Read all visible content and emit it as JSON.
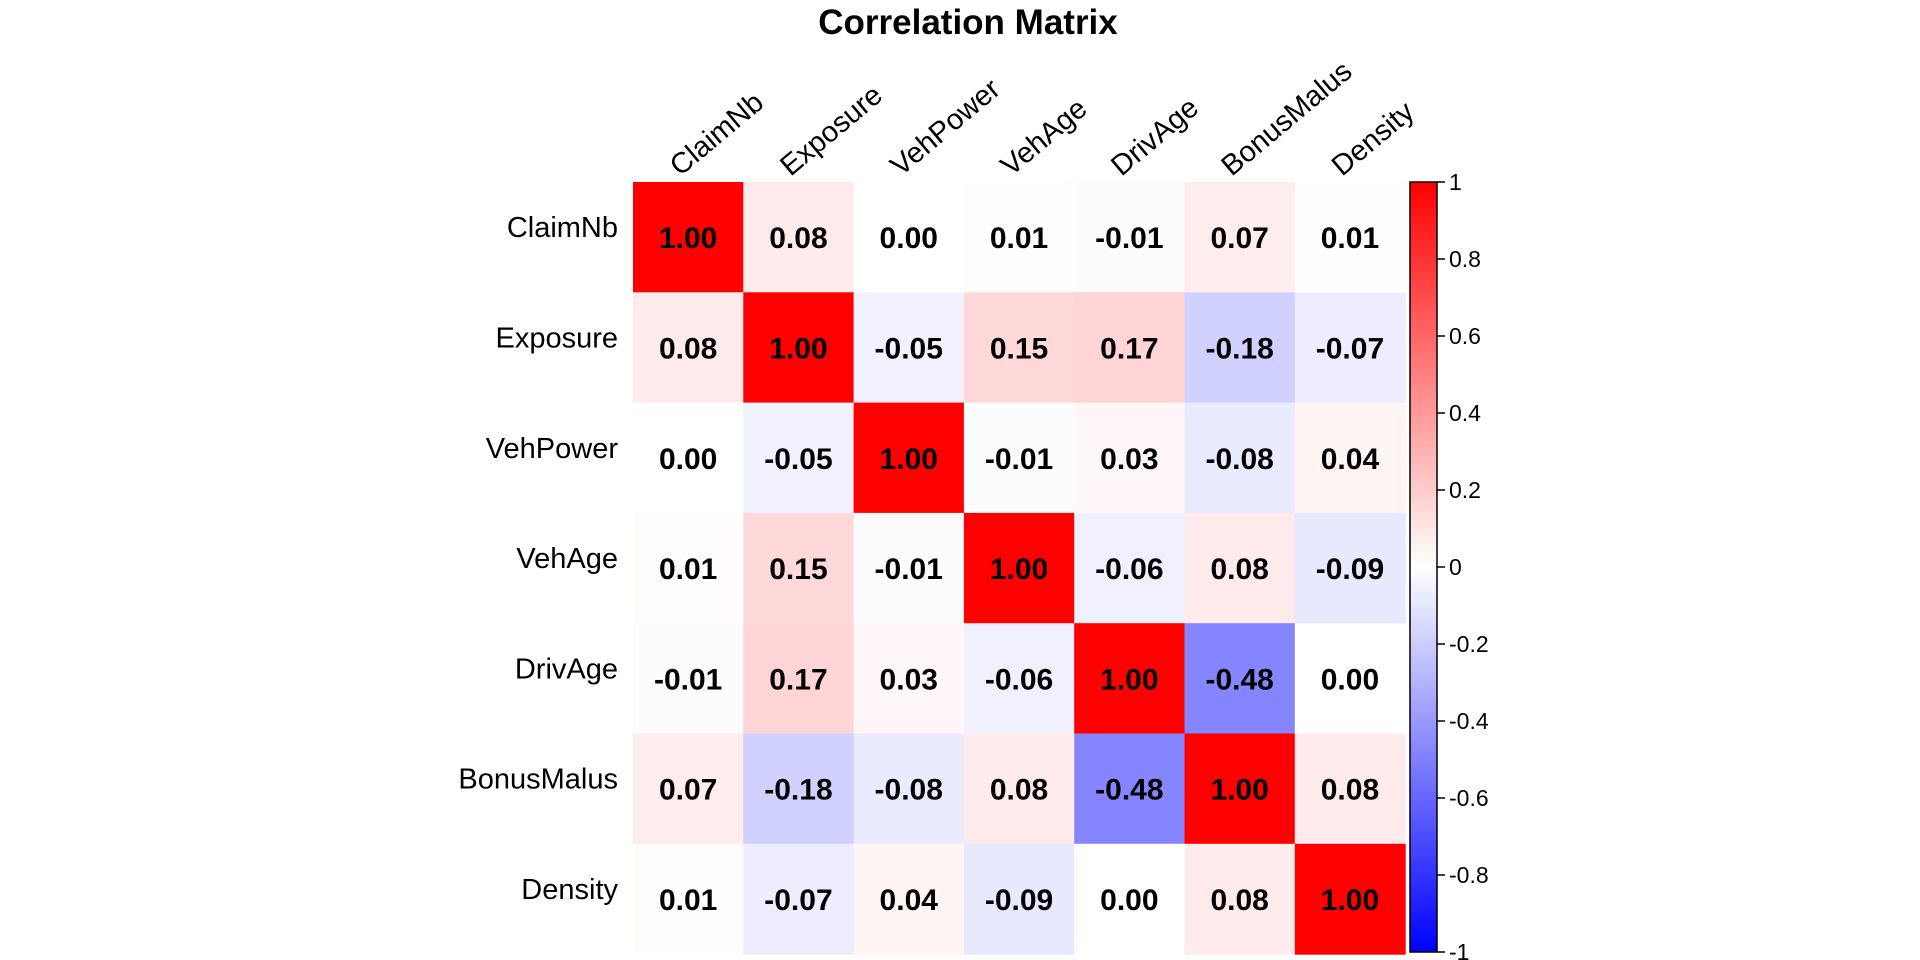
{
  "chart_data": {
    "type": "heatmap",
    "title": "Correlation Matrix",
    "variables": [
      "ClaimNb",
      "Exposure",
      "VehPower",
      "VehAge",
      "DrivAge",
      "BonusMalus",
      "Density"
    ],
    "matrix": [
      [
        1.0,
        0.08,
        0.0,
        0.01,
        -0.01,
        0.07,
        0.01
      ],
      [
        0.08,
        1.0,
        -0.05,
        0.15,
        0.17,
        -0.18,
        -0.07
      ],
      [
        0.0,
        -0.05,
        1.0,
        -0.01,
        0.03,
        -0.08,
        0.04
      ],
      [
        0.01,
        0.15,
        -0.01,
        1.0,
        -0.06,
        0.08,
        -0.09
      ],
      [
        -0.01,
        0.17,
        0.03,
        -0.06,
        1.0,
        -0.48,
        0.0
      ],
      [
        0.07,
        -0.18,
        -0.08,
        0.08,
        -0.48,
        1.0,
        0.08
      ],
      [
        0.01,
        -0.07,
        0.04,
        -0.09,
        0.0,
        0.08,
        1.0
      ]
    ],
    "value_format": "0.00",
    "color_scale": {
      "min": -1,
      "max": 1,
      "low_color": "#0000FF",
      "mid_color": "#FFFFFF",
      "high_color": "#FF0000"
    },
    "legend": {
      "placement": "right",
      "ticks": [
        1,
        0.8,
        0.6,
        0.4,
        0.2,
        0,
        -0.2,
        -0.4,
        -0.6,
        -0.8,
        -1
      ],
      "tick_labels": [
        "1",
        "0.8",
        "0.6",
        "0.4",
        "0.2",
        "0",
        "-0.2",
        "-0.4",
        "-0.6",
        "-0.8",
        "-1"
      ]
    },
    "grid": false
  }
}
